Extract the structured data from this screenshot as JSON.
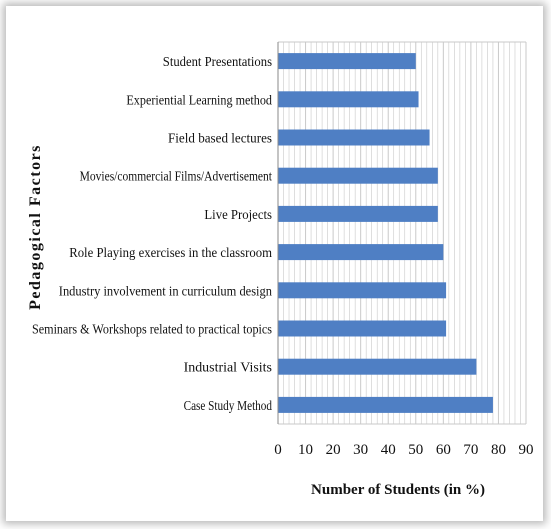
{
  "chart_data": {
    "type": "bar",
    "orientation": "horizontal",
    "categories": [
      "Case Study Method",
      "Industrial Visits",
      "Seminars  & Workshops related to practical topics",
      "Industry involvement in curriculum design",
      "Role Playing exercises in the classroom",
      "Live Projects",
      "Movies/commercial Films/Advertisement",
      "Field based lectures",
      "Experiential Learning method",
      "Student Presentations"
    ],
    "values": [
      78,
      72,
      61,
      61,
      60,
      58,
      58,
      55,
      51,
      50
    ],
    "xlabel": "Number of Students (in %)",
    "ylabel": "Pedagogical Factors",
    "xlim": [
      0,
      90
    ],
    "xticks": [
      0,
      10,
      20,
      30,
      40,
      50,
      60,
      70,
      80,
      90
    ],
    "grid": "vertical",
    "bar_color": "#4f7fc4",
    "grid_color": "#c9c9c9"
  }
}
